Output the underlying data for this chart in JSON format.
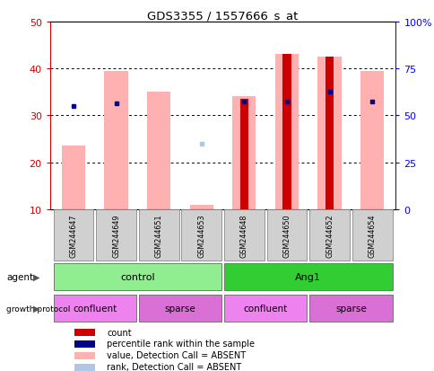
{
  "title": "GDS3355 / 1557666_s_at",
  "samples": [
    "GSM244647",
    "GSM244649",
    "GSM244651",
    "GSM244653",
    "GSM244648",
    "GSM244650",
    "GSM244652",
    "GSM244654"
  ],
  "ylim_left": [
    10,
    50
  ],
  "ylim_right": [
    0,
    100
  ],
  "yticks_left": [
    10,
    20,
    30,
    40,
    50
  ],
  "yticks_right": [
    0,
    25,
    50,
    75,
    100
  ],
  "ytick_labels_right": [
    "0",
    "25",
    "50",
    "75",
    "100%"
  ],
  "pink_bars": [
    23.5,
    39.5,
    35.0,
    11.0,
    34.0,
    43.0,
    42.5,
    39.5
  ],
  "red_bars": [
    null,
    null,
    null,
    null,
    33.5,
    43.0,
    42.5,
    null
  ],
  "blue_squares": [
    32.0,
    32.5,
    null,
    null,
    33.0,
    33.0,
    35.0,
    33.0
  ],
  "light_blue_squares": [
    null,
    null,
    null,
    24.0,
    null,
    null,
    null,
    null
  ],
  "agent_groups": [
    {
      "label": "control",
      "start": 0,
      "end": 4,
      "color": "#90ee90"
    },
    {
      "label": "Ang1",
      "start": 4,
      "end": 8,
      "color": "#32cd32"
    }
  ],
  "growth_groups": [
    {
      "label": "confluent",
      "start": 0,
      "end": 2,
      "color": "#ee82ee"
    },
    {
      "label": "sparse",
      "start": 2,
      "end": 4,
      "color": "#da70d6"
    },
    {
      "label": "confluent",
      "start": 4,
      "end": 6,
      "color": "#ee82ee"
    },
    {
      "label": "sparse",
      "start": 6,
      "end": 8,
      "color": "#da70d6"
    }
  ],
  "legend_items": [
    {
      "color": "#cc0000",
      "label": "count"
    },
    {
      "color": "#00008b",
      "label": "percentile rank within the sample"
    },
    {
      "color": "#ffb0b0",
      "label": "value, Detection Call = ABSENT"
    },
    {
      "color": "#aec6e8",
      "label": "rank, Detection Call = ABSENT"
    }
  ],
  "pink_color": "#ffb0b0",
  "red_color": "#cc0000",
  "blue_color": "#00008b",
  "light_blue_color": "#aec6e8",
  "left_axis_color": "#cc0000",
  "right_axis_color": "#0000ff"
}
